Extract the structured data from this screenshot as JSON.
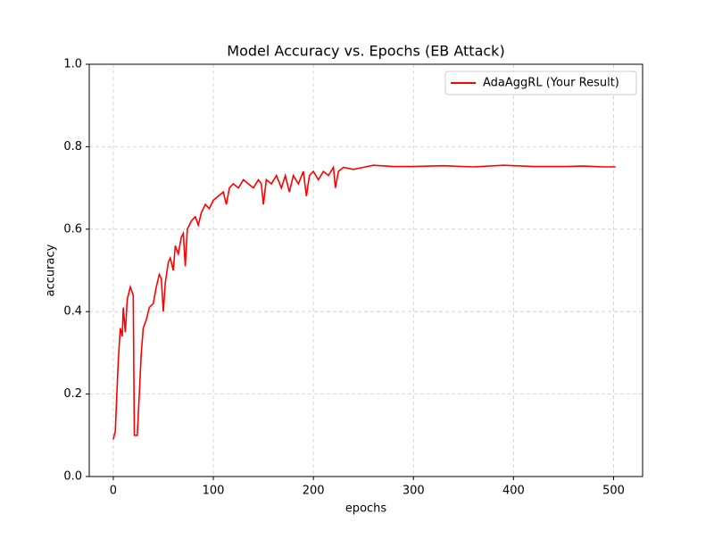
{
  "chart_data": {
    "type": "line",
    "title": "Model Accuracy vs. Epochs (EB Attack)",
    "x_label": "epochs",
    "y_label": "accuracy",
    "x": [
      0,
      2,
      5,
      7,
      9,
      10,
      12,
      14,
      17,
      20,
      21,
      24,
      26,
      28,
      30,
      33,
      36,
      40,
      43,
      46,
      48,
      50,
      52,
      55,
      57,
      60,
      62,
      65,
      68,
      70,
      72,
      74,
      78,
      82,
      85,
      88,
      92,
      96,
      100,
      105,
      110,
      113,
      116,
      120,
      125,
      130,
      135,
      140,
      145,
      148,
      150,
      153,
      158,
      163,
      168,
      172,
      176,
      180,
      185,
      190,
      193,
      196,
      200,
      205,
      210,
      215,
      220,
      222,
      225,
      230,
      240,
      250,
      260,
      280,
      300,
      330,
      360,
      390,
      420,
      450,
      470,
      490,
      502
    ],
    "series": [
      {
        "name": "AdaAggRL (Your Result)",
        "color": "#ff0000",
        "values": [
          0.09,
          0.11,
          0.28,
          0.36,
          0.34,
          0.41,
          0.35,
          0.43,
          0.46,
          0.44,
          0.1,
          0.1,
          0.2,
          0.3,
          0.36,
          0.38,
          0.41,
          0.42,
          0.46,
          0.49,
          0.48,
          0.4,
          0.47,
          0.52,
          0.53,
          0.5,
          0.56,
          0.54,
          0.58,
          0.59,
          0.51,
          0.6,
          0.62,
          0.63,
          0.61,
          0.64,
          0.66,
          0.65,
          0.67,
          0.68,
          0.69,
          0.66,
          0.7,
          0.71,
          0.7,
          0.72,
          0.71,
          0.7,
          0.72,
          0.71,
          0.66,
          0.72,
          0.71,
          0.73,
          0.7,
          0.73,
          0.69,
          0.73,
          0.71,
          0.74,
          0.68,
          0.73,
          0.74,
          0.72,
          0.74,
          0.73,
          0.75,
          0.7,
          0.74,
          0.75,
          0.745,
          0.75,
          0.755,
          0.752,
          0.752,
          0.754,
          0.751,
          0.755,
          0.752,
          0.752,
          0.753,
          0.751,
          0.751
        ]
      }
    ],
    "xlim": [
      -24,
      529
    ],
    "ylim": [
      0,
      1
    ],
    "xticks": [
      0,
      100,
      200,
      300,
      400,
      500
    ],
    "yticks": [
      {
        "value": 0,
        "label": "0.0"
      },
      {
        "value": 0.2,
        "label": "0.2"
      },
      {
        "value": 0.4,
        "label": "0.4"
      },
      {
        "value": 0.6,
        "label": "0.6"
      },
      {
        "value": 0.8,
        "label": "0.8"
      },
      {
        "value": 1,
        "label": "1.0"
      }
    ],
    "grid": true,
    "legend": "upper right"
  }
}
